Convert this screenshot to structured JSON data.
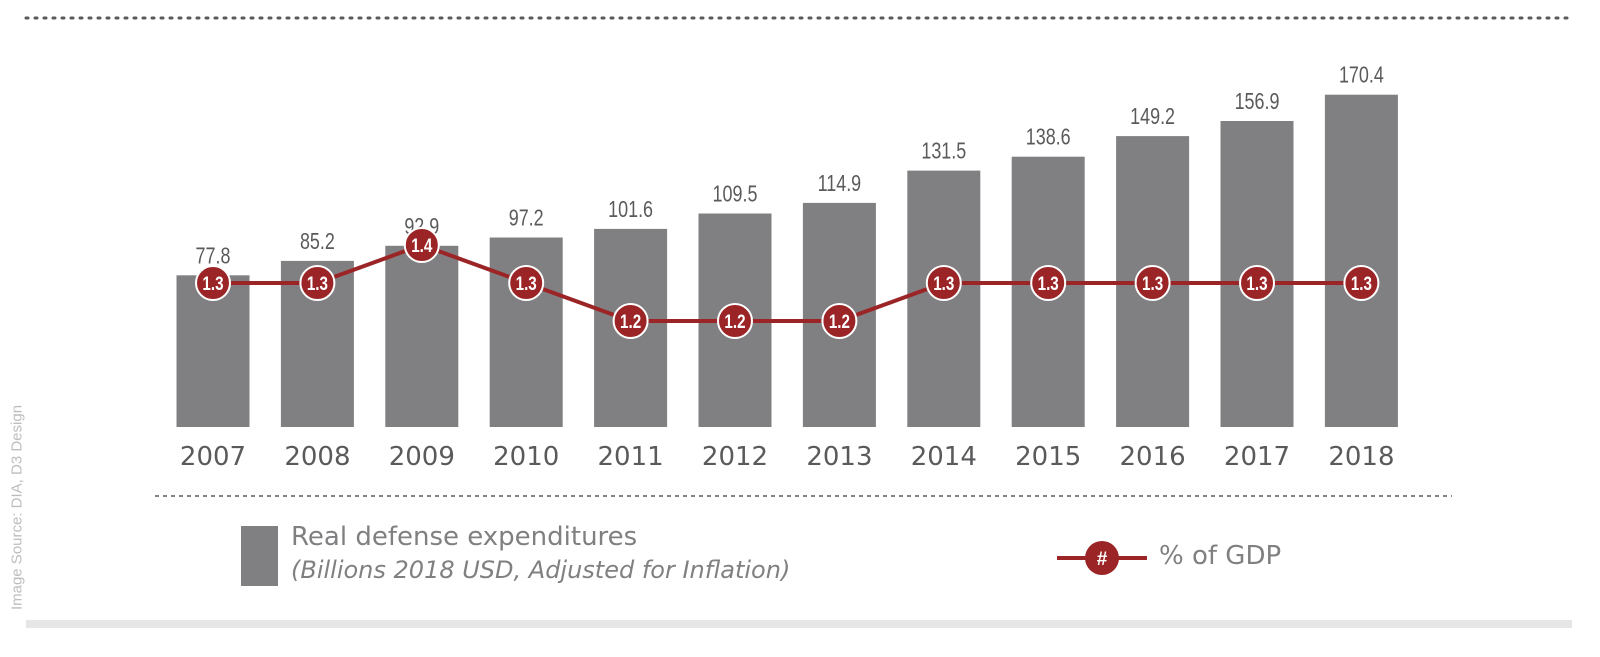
{
  "credit": "Image Source: DIA, D3 Design",
  "colors": {
    "bar": "#808083",
    "line": "#9b2526",
    "marker_fill": "#9b2526",
    "marker_text": "#ffffff",
    "text": "#5a5a5c",
    "divider": "#5a5a5c",
    "footer_band": "#e6e6e6"
  },
  "legend": {
    "bar_title": "Real defense expenditures",
    "bar_subtitle": "(Billions 2018 USD, Adjusted for Inflation)",
    "line_marker": "#",
    "line_label": "% of GDP"
  },
  "chart_data": {
    "type": "bar",
    "categories": [
      "2007",
      "2008",
      "2009",
      "2010",
      "2011",
      "2012",
      "2013",
      "2014",
      "2015",
      "2016",
      "2017",
      "2018"
    ],
    "series": [
      {
        "name": "Real defense expenditures",
        "type": "bar",
        "values": [
          77.8,
          85.2,
          92.9,
          97.2,
          101.6,
          109.5,
          114.9,
          131.5,
          138.6,
          149.2,
          156.9,
          170.4
        ],
        "labels": [
          "77.8",
          "85.2",
          "92.9",
          "97.2",
          "101.6",
          "109.5",
          "114.9",
          "131.5",
          "138.6",
          "149.2",
          "156.9",
          "170.4"
        ]
      },
      {
        "name": "% of GDP",
        "type": "line",
        "values": [
          1.3,
          1.3,
          1.4,
          1.3,
          1.2,
          1.2,
          1.2,
          1.3,
          1.3,
          1.3,
          1.3,
          1.3
        ],
        "labels": [
          "1.3",
          "1.3",
          "1.4",
          "1.3",
          "1.2",
          "1.2",
          "1.2",
          "1.3",
          "1.3",
          "1.3",
          "1.3",
          "1.3"
        ]
      }
    ],
    "title": "",
    "xlabel": "",
    "ylabel": "",
    "grid": false,
    "legend_position": "bottom"
  }
}
